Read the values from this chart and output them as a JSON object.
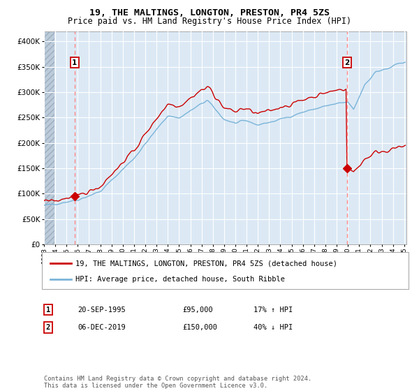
{
  "title": "19, THE MALTINGS, LONGTON, PRESTON, PR4 5ZS",
  "subtitle": "Price paid vs. HM Land Registry's House Price Index (HPI)",
  "legend_line1": "19, THE MALTINGS, LONGTON, PRESTON, PR4 5ZS (detached house)",
  "legend_line2": "HPI: Average price, detached house, South Ribble",
  "sale1_date": "20-SEP-1995",
  "sale1_price": 95000,
  "sale1_label": "17% ↑ HPI",
  "sale2_date": "06-DEC-2019",
  "sale2_price": 150000,
  "sale2_label": "40% ↓ HPI",
  "sale1_year": 1995.72,
  "sale2_year": 2019.92,
  "hpi_color": "#7ab4d8",
  "property_color": "#cc0000",
  "marker_color": "#cc0000",
  "vline_color": "#ff8888",
  "bg_color": "#dce9f5",
  "hatch_color": "#c0ccd8",
  "grid_color": "#ffffff",
  "annotation_box_color": "#cc0000",
  "ylim_max": 420000,
  "ylim_min": 0,
  "footer": "Contains HM Land Registry data © Crown copyright and database right 2024.\nThis data is licensed under the Open Government Licence v3.0."
}
